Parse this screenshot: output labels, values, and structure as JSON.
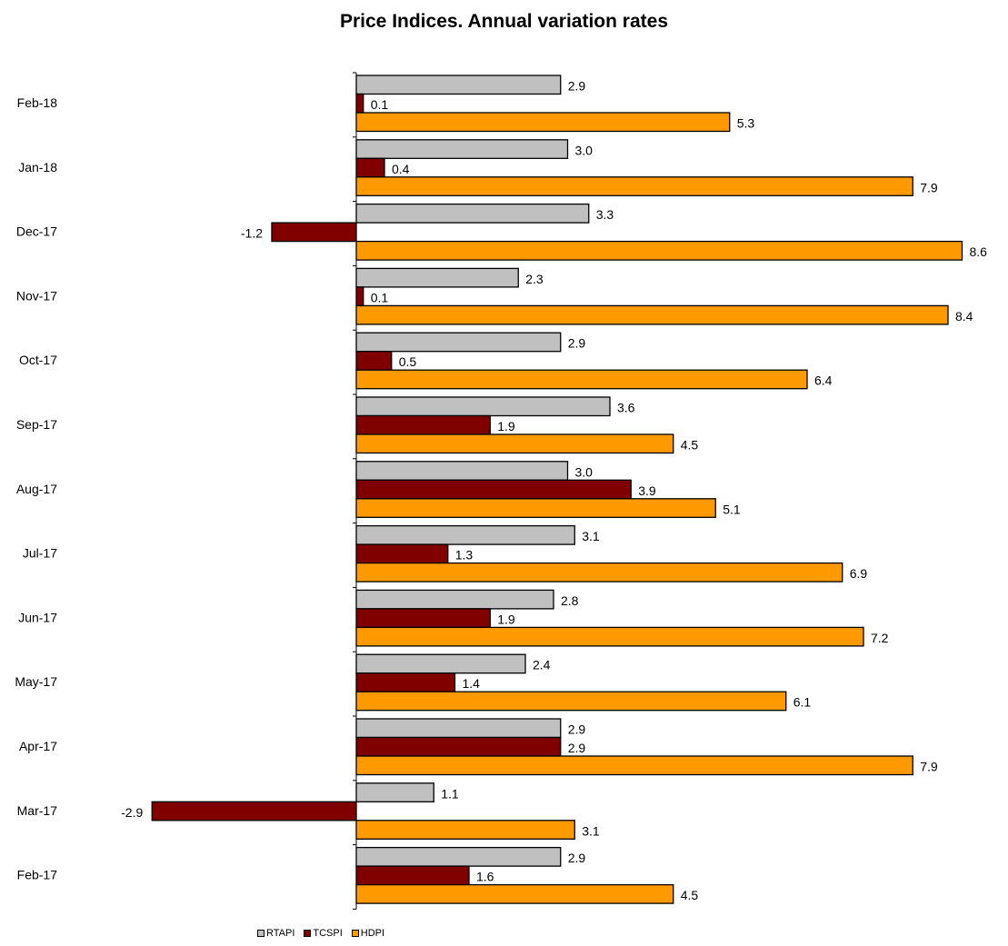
{
  "chart_data": {
    "type": "bar",
    "orientation": "horizontal",
    "title": "Price Indices. Annual variation rates",
    "categories": [
      "Feb-18",
      "Jan-18",
      "Dec-17",
      "Nov-17",
      "Oct-17",
      "Sep-17",
      "Aug-17",
      "Jul-17",
      "Jun-17",
      "May-17",
      "Apr-17",
      "Mar-17",
      "Feb-17"
    ],
    "series": [
      {
        "name": "RTAPI",
        "color": "#c0c0c0",
        "values": [
          2.9,
          3.0,
          3.3,
          2.3,
          2.9,
          3.6,
          3.0,
          3.1,
          2.8,
          2.4,
          2.9,
          1.1,
          2.9
        ],
        "labels": [
          "2.9",
          "3.0",
          "3.3",
          "2.3",
          "2.9",
          "3.6",
          "3.0",
          "3.1",
          "2.8",
          "2.4",
          "2.9",
          "1.1",
          "2.9"
        ]
      },
      {
        "name": "TCSPI",
        "color": "#800000",
        "values": [
          0.1,
          0.4,
          -1.2,
          0.1,
          0.5,
          1.9,
          3.9,
          1.3,
          1.9,
          1.4,
          2.9,
          -2.9,
          1.6
        ],
        "labels": [
          "0.1",
          "0.4",
          "-1.2",
          "0.1",
          "0.5",
          "1.9",
          "3.9",
          "1.3",
          "1.9",
          "1.4",
          "2.9",
          "-2.9",
          "1.6"
        ]
      },
      {
        "name": "HDPI",
        "color": "#ff9900",
        "values": [
          5.3,
          7.9,
          8.6,
          8.4,
          6.4,
          4.5,
          5.1,
          6.9,
          7.2,
          6.1,
          7.9,
          3.1,
          4.5
        ],
        "labels": [
          "5.3",
          "7.9",
          "8.6",
          "8.4",
          "6.4",
          "4.5",
          "5.1",
          "6.9",
          "7.2",
          "6.1",
          "7.9",
          "3.1",
          "4.5"
        ]
      }
    ],
    "grid": false,
    "legend_position": "bottom-left"
  }
}
